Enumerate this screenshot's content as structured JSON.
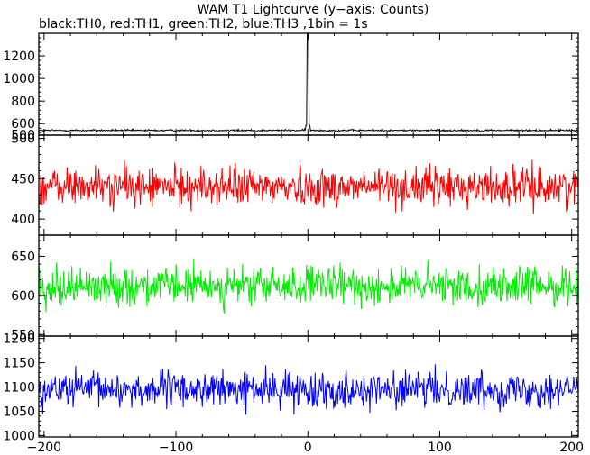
{
  "chart_data": {
    "type": "line",
    "title": "WAM T1 Lightcurve (y−axis: Counts)",
    "subtitle": "black:TH0, red:TH1, green:TH2, blue:TH3 ,1bin = 1s",
    "x_ticks": [
      "−200",
      "−100",
      "0",
      "100",
      "200"
    ],
    "xlim": [
      -204,
      205
    ],
    "bin_seconds": 1,
    "grid": false,
    "panels": [
      {
        "series": "TH0",
        "color": "#000000",
        "ylim": [
          498,
          1400
        ],
        "ticks": [
          500,
          600,
          800,
          1000,
          1200
        ],
        "mean": 540,
        "noise": 8,
        "peak": {
          "x": 0,
          "y": 1390
        }
      },
      {
        "series": "TH1",
        "color": "#ff0000",
        "ylim": [
          380,
          504
        ],
        "ticks": [
          400,
          450,
          500
        ],
        "mean": 440,
        "noise": 22
      },
      {
        "series": "TH2",
        "color": "#00ee00",
        "ylim": [
          548,
          677
        ],
        "ticks": [
          550,
          600,
          650
        ],
        "mean": 612,
        "noise": 22
      },
      {
        "series": "TH3",
        "color": "#0000ff",
        "ylim": [
          997,
          1205
        ],
        "ticks": [
          1000,
          1050,
          1100,
          1150,
          1200
        ],
        "mean": 1095,
        "noise": 33
      }
    ]
  }
}
